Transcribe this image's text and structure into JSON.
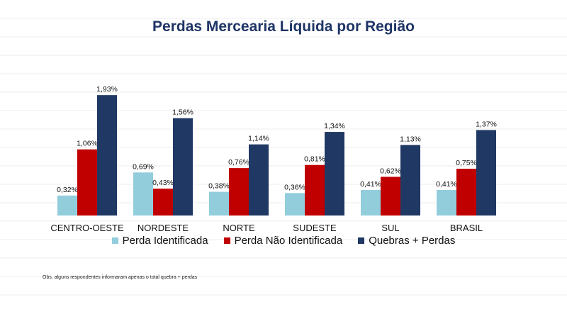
{
  "title": "Perdas Mercearia Líquida por Região",
  "note": "Obs. alguns respondentes informaram apenas  o total quebra + perdas",
  "chart_data": {
    "type": "bar",
    "title": "Perdas Mercearia Líquida por Região",
    "categories": [
      "CENTRO-OESTE",
      "NORDESTE",
      "NORTE",
      "SUDESTE",
      "SUL",
      "BRASIL"
    ],
    "series": [
      {
        "name": "Perda Identificada",
        "color": "#92CDDC",
        "values": [
          0.32,
          0.69,
          0.38,
          0.36,
          0.41,
          0.41
        ],
        "labels": [
          "0,32%",
          "0,69%",
          "0,38%",
          "0,36%",
          "0,41%",
          "0,41%"
        ]
      },
      {
        "name": "Perda Não Identificada",
        "color": "#C00000",
        "values": [
          1.06,
          0.43,
          0.76,
          0.81,
          0.62,
          0.75
        ],
        "labels": [
          "1,06%",
          "0,43%",
          "0,76%",
          "0,81%",
          "0,62%",
          "0,75%"
        ]
      },
      {
        "name": "Quebras + Perdas",
        "color": "#1F3864",
        "values": [
          1.93,
          1.56,
          1.14,
          1.34,
          1.13,
          1.37
        ],
        "labels": [
          "1,93%",
          "1,56%",
          "1,14%",
          "1,34%",
          "1,13%",
          "1,37%"
        ]
      }
    ],
    "ylim": [
      0,
      2.0
    ],
    "grid": true,
    "legend_position": "bottom"
  }
}
